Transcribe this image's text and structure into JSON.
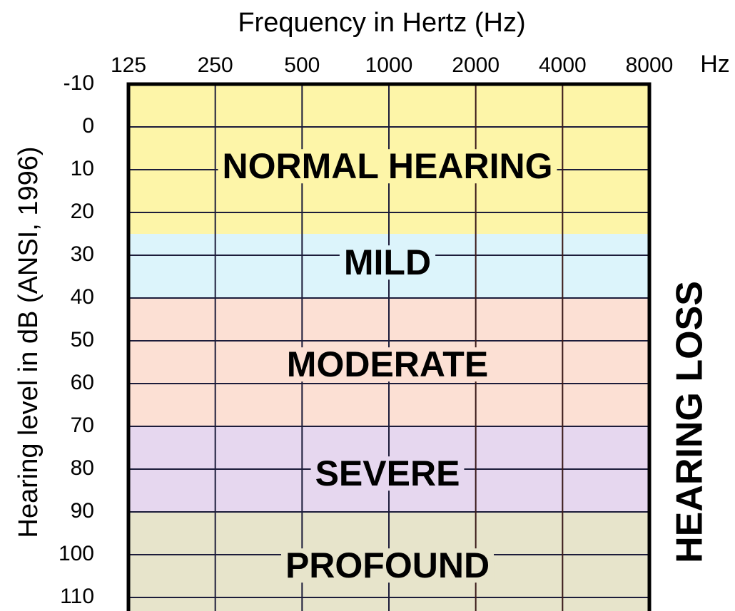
{
  "chart_data": {
    "type": "audiogram",
    "title": "Frequency in Hertz (Hz)",
    "x_unit": "Hz",
    "y_label": "Hearing level in dB (ANSI, 1996)",
    "side_label": "HEARING LOSS",
    "x_scale": "log",
    "xlim": [
      125,
      8000
    ],
    "xticks": [
      125,
      250,
      500,
      1000,
      2000,
      4000,
      8000
    ],
    "ylim": [
      -10,
      112
    ],
    "y_inverted": true,
    "yticks": [
      -10,
      0,
      10,
      20,
      30,
      40,
      50,
      60,
      70,
      80,
      90,
      100,
      110
    ],
    "grid": true,
    "bands": [
      {
        "label": "NORMAL HEARING",
        "from": -10,
        "to": 25,
        "color": "#fdf5a8"
      },
      {
        "label": "MILD",
        "from": 25,
        "to": 40,
        "color": "#dcf4fb"
      },
      {
        "label": "MODERATE",
        "from": 40,
        "to": 70,
        "color": "#fce0d4"
      },
      {
        "label": "SEVERE",
        "from": 70,
        "to": 90,
        "color": "#e6d7ef"
      },
      {
        "label": "PROFOUND",
        "from": 90,
        "to": 120,
        "color": "#e7e4cb"
      }
    ]
  }
}
